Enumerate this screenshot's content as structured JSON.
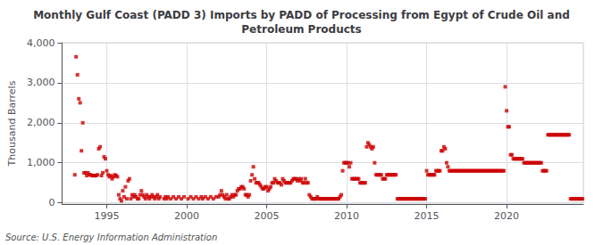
{
  "chart_data": {
    "type": "scatter",
    "title": "Monthly Gulf Coast (PADD 3) Imports by PADD of Processing from Egypt of Crude Oil and\nPetroleum Products",
    "ylabel": "Thousand Barrels",
    "source": "Source: U.S. Energy Information Administration",
    "color": "#cc0000",
    "marker": "square",
    "grid": true,
    "xlim": [
      1992.2,
      2024.8
    ],
    "xticks": [
      1995,
      2000,
      2005,
      2010,
      2015,
      2020
    ],
    "ylim": [
      -30,
      4000
    ],
    "yticks": [
      0,
      {
        "value": 1000,
        "label": "1,000"
      },
      {
        "value": 2000,
        "label": "2,000"
      },
      {
        "value": 3000,
        "label": "3,000"
      },
      {
        "value": 4000,
        "label": "4,000"
      }
    ],
    "x": [
      1993,
      1993.0833333333333,
      1993.1666666666667,
      1993.25,
      1993.3333333333333,
      1993.4166666666667,
      1993.5,
      1993.5833333333333,
      1993.6666666666667,
      1993.75,
      1993.8333333333333,
      1993.9166666666667,
      1994,
      1994.0833333333333,
      1994.1666666666667,
      1994.25,
      1994.3333333333333,
      1994.4166666666667,
      1994.5,
      1994.5833333333333,
      1994.6666666666667,
      1994.75,
      1994.8333333333333,
      1994.9166666666667,
      1995,
      1995.0833333333333,
      1995.1666666666667,
      1995.25,
      1995.3333333333333,
      1995.4166666666667,
      1995.5,
      1995.5833333333333,
      1995.6666666666667,
      1995.75,
      1995.8333333333333,
      1995.9166666666667,
      1996,
      1996.0833333333333,
      1996.1666666666667,
      1996.25,
      1996.3333333333333,
      1996.4166666666667,
      1996.5,
      1996.5833333333333,
      1996.6666666666667,
      1996.75,
      1996.8333333333333,
      1996.9166666666667,
      1997,
      1997.0833333333333,
      1997.1666666666667,
      1997.25,
      1997.3333333333333,
      1997.4166666666667,
      1997.5,
      1997.5833333333333,
      1997.6666666666667,
      1997.75,
      1997.8333333333333,
      1997.9166666666667,
      1998,
      1998.0833333333333,
      1998.1666666666667,
      1998.25,
      1998.3333333333333,
      1998.5833333333333,
      1998.6666666666667,
      1998.75,
      1998.8333333333333,
      1999,
      1999.1666666666667,
      1999.3333333333333,
      1999.5,
      1999.6666666666667,
      1999.8333333333333,
      2000.0833333333333,
      2000.25,
      2000.4166666666667,
      2000.5833333333333,
      2000.75,
      2000.9166666666667,
      2001,
      2001.1666666666667,
      2001.3333333333333,
      2001.5,
      2001.6666666666667,
      2001.8333333333333,
      2002,
      2002.0833333333333,
      2002.1666666666667,
      2002.25,
      2002.3333333333333,
      2002.4166666666667,
      2002.5,
      2002.5833333333333,
      2002.6666666666667,
      2002.75,
      2002.8333333333333,
      2002.9166666666667,
      2003,
      2003.0833333333333,
      2003.1666666666667,
      2003.25,
      2003.3333333333333,
      2003.4166666666667,
      2003.5,
      2003.5833333333333,
      2003.6666666666667,
      2003.75,
      2003.8333333333333,
      2003.9166666666667,
      2004,
      2004.0833333333333,
      2004.1666666666667,
      2004.25,
      2004.3333333333333,
      2004.4166666666667,
      2004.5,
      2004.5833333333333,
      2004.6666666666667,
      2004.75,
      2004.8333333333333,
      2004.9166666666667,
      2005,
      2005.0833333333333,
      2005.1666666666667,
      2005.25,
      2005.3333333333333,
      2005.4166666666667,
      2005.5,
      2005.5833333333333,
      2005.6666666666667,
      2005.75,
      2005.8333333333333,
      2005.9166666666667,
      2006,
      2006.0833333333333,
      2006.1666666666667,
      2006.25,
      2006.3333333333333,
      2006.4166666666667,
      2006.5,
      2006.5833333333333,
      2006.6666666666667,
      2006.75,
      2006.8333333333333,
      2006.9166666666667,
      2007,
      2007.0833333333333,
      2007.1666666666667,
      2007.25,
      2007.3333333333333,
      2007.4166666666667,
      2007.5,
      2007.5833333333333,
      2007.6666666666667,
      2007.75,
      2007.8333333333333,
      2007.9166666666667,
      2008,
      2008.0833333333333,
      2008.1666666666667,
      2008.25,
      2008.3333333333333,
      2008.4166666666667,
      2008.5,
      2008.5833333333333,
      2008.6666666666667,
      2008.75,
      2008.8333333333333,
      2008.9166666666667,
      2009,
      2009.0833333333333,
      2009.1666666666667,
      2009.25,
      2009.3333333333333,
      2009.4166666666667,
      2009.5,
      2009.5833333333333,
      2009.6666666666667,
      2009.75,
      2009.8333333333333,
      2009.9166666666667,
      2010,
      2010.0833333333333,
      2010.1666666666667,
      2010.25,
      2010.3333333333333,
      2010.4166666666667,
      2010.5,
      2010.5833333333333,
      2010.6666666666667,
      2010.75,
      2010.8333333333333,
      2010.9166666666667,
      2011,
      2011.0833333333333,
      2011.1666666666667,
      2011.25,
      2011.3333333333333,
      2011.4166666666667,
      2011.5,
      2011.5833333333333,
      2011.6666666666667,
      2011.75,
      2011.8333333333333,
      2011.9166666666667,
      2012,
      2012.0833333333333,
      2012.1666666666667,
      2012.25,
      2012.3333333333333,
      2012.4166666666667,
      2012.5,
      2012.5833333333333,
      2012.6666666666667,
      2012.75,
      2012.8333333333333,
      2012.9166666666667,
      2013,
      2013.0833333333333,
      2013.1666666666667,
      2013.25,
      2013.3333333333333,
      2013.4166666666667,
      2013.5,
      2013.5833333333333,
      2013.6666666666667,
      2013.75,
      2013.8333333333333,
      2013.9166666666667,
      2014,
      2014.0833333333333,
      2014.1666666666667,
      2014.25,
      2014.3333333333333,
      2014.4166666666667,
      2014.5,
      2014.5833333333333,
      2014.6666666666667,
      2014.75,
      2014.8333333333333,
      2014.9166666666667,
      2015,
      2015.0833333333333,
      2015.1666666666667,
      2015.25,
      2015.3333333333333,
      2015.4166666666667,
      2015.5,
      2015.5833333333333,
      2015.6666666666667,
      2015.75,
      2015.8333333333333,
      2015.9166666666667,
      2016,
      2016.0833333333333,
      2016.1666666666667,
      2016.25,
      2016.3333333333333,
      2016.4166666666667,
      2016.5,
      2016.5833333333333,
      2016.6666666666667,
      2016.75,
      2016.8333333333333,
      2016.9166666666667,
      2017,
      2017.0833333333333,
      2017.1666666666667,
      2017.25,
      2017.3333333333333,
      2017.4166666666667,
      2017.5,
      2017.5833333333333,
      2017.6666666666667,
      2017.75,
      2017.8333333333333,
      2017.9166666666667,
      2018,
      2018.0833333333333,
      2018.1666666666667,
      2018.25,
      2018.3333333333333,
      2018.4166666666667,
      2018.5,
      2018.5833333333333,
      2018.6666666666667,
      2018.75,
      2018.8333333333333,
      2018.9166666666667,
      2019,
      2019.0833333333333,
      2019.1666666666667,
      2019.25,
      2019.3333333333333,
      2019.4166666666667,
      2019.5,
      2019.5833333333333,
      2019.6666666666667,
      2019.75,
      2019.8333333333333,
      2019.9166666666667,
      2020,
      2020.0833333333333,
      2020.1666666666667,
      2020.25,
      2020.3333333333333,
      2020.4166666666667,
      2020.5,
      2020.5833333333333,
      2020.6666666666667,
      2020.75,
      2020.8333333333333,
      2020.9166666666667,
      2021,
      2021.0833333333333,
      2021.1666666666667,
      2021.25,
      2021.3333333333333,
      2021.4166666666667,
      2021.5,
      2021.5833333333333,
      2021.6666666666667,
      2021.75,
      2021.8333333333333,
      2021.9166666666667,
      2022,
      2022.0833333333333,
      2022.1666666666667,
      2022.25,
      2022.3333333333333,
      2022.4166666666667,
      2022.5,
      2022.5833333333333,
      2022.6666666666667,
      2022.75,
      2022.8333333333333,
      2022.9166666666667,
      2023,
      2023.0833333333333,
      2023.1666666666667,
      2023.25,
      2023.3333333333333,
      2023.4166666666667,
      2023.5,
      2023.5833333333333,
      2023.6666666666667,
      2023.75,
      2023.8333333333333,
      2023.9166666666667,
      2024,
      2024.0833333333333,
      2024.1666666666667,
      2024.25,
      2024.3333333333333,
      2024.4166666666667,
      2024.5,
      2024.5833333333333,
      2024.6666666666667,
      2024.75
    ],
    "values": [
      700,
      3650,
      3200,
      2600,
      2500,
      1300,
      2000,
      750,
      750,
      680,
      750,
      700,
      700,
      680,
      680,
      680,
      680,
      700,
      1350,
      1400,
      680,
      750,
      1150,
      1100,
      800,
      700,
      650,
      680,
      600,
      650,
      700,
      680,
      650,
      200,
      100,
      50,
      300,
      150,
      400,
      100,
      550,
      600,
      100,
      200,
      150,
      200,
      150,
      100,
      100,
      200,
      300,
      200,
      150,
      100,
      200,
      150,
      100,
      150,
      200,
      150,
      100,
      150,
      200,
      100,
      150,
      100,
      150,
      100,
      150,
      100,
      150,
      100,
      150,
      100,
      150,
      100,
      150,
      100,
      150,
      100,
      150,
      100,
      150,
      100,
      150,
      100,
      150,
      150,
      200,
      300,
      200,
      150,
      100,
      200,
      100,
      100,
      150,
      200,
      150,
      200,
      200,
      300,
      350,
      350,
      400,
      400,
      350,
      200,
      200,
      150,
      200,
      550,
      700,
      900,
      600,
      500,
      500,
      500,
      450,
      400,
      350,
      350,
      400,
      400,
      300,
      350,
      400,
      500,
      500,
      600,
      550,
      500,
      500,
      500,
      450,
      600,
      550,
      500,
      500,
      500,
      500,
      500,
      550,
      600,
      600,
      600,
      550,
      600,
      550,
      600,
      500,
      500,
      600,
      500,
      500,
      200,
      150,
      100,
      100,
      100,
      100,
      150,
      100,
      100,
      100,
      100,
      100,
      100,
      100,
      100,
      100,
      100,
      100,
      100,
      100,
      100,
      100,
      100,
      150,
      200,
      800,
      1000,
      1000,
      1000,
      1000,
      900,
      1000,
      600,
      600,
      600,
      600,
      600,
      600,
      500,
      500,
      500,
      500,
      500,
      1400,
      1500,
      1450,
      1400,
      1350,
      1400,
      1000,
      700,
      700,
      700,
      700,
      700,
      600,
      600,
      600,
      700,
      700,
      700,
      700,
      700,
      700,
      700,
      700,
      100,
      100,
      100,
      100,
      100,
      100,
      100,
      100,
      100,
      100,
      100,
      100,
      100,
      100,
      100,
      100,
      100,
      100,
      100,
      100,
      100,
      100,
      800,
      700,
      700,
      700,
      700,
      700,
      700,
      800,
      800,
      800,
      800,
      1300,
      1300,
      1400,
      1350,
      1000,
      900,
      800,
      800,
      800,
      800,
      800,
      800,
      800,
      800,
      800,
      800,
      800,
      800,
      800,
      800,
      800,
      800,
      800,
      800,
      800,
      800,
      800,
      800,
      800,
      800,
      800,
      800,
      800,
      800,
      800,
      800,
      800,
      800,
      800,
      800,
      800,
      800,
      800,
      800,
      800,
      800,
      800,
      800,
      2900,
      2300,
      1900,
      1900,
      1200,
      1200,
      1100,
      1100,
      1100,
      1100,
      1100,
      1100,
      1100,
      1100,
      1000,
      1000,
      1000,
      1000,
      1000,
      1000,
      1000,
      1000,
      1000,
      1000,
      1000,
      1000,
      1000,
      1000,
      800,
      800,
      800,
      800,
      1700,
      1700,
      1700,
      1700,
      1700,
      1700,
      1700,
      1700,
      1700,
      1700,
      1700,
      1700,
      1700,
      1700,
      1700,
      1700,
      1700,
      100,
      100,
      100,
      100,
      100,
      100,
      100,
      100,
      100,
      100
    ]
  }
}
